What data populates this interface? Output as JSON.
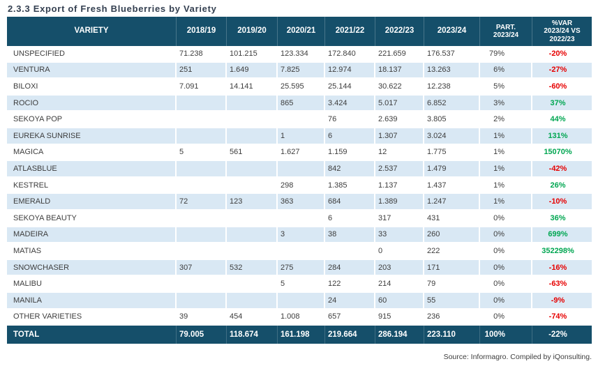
{
  "title": "2.3.3 Export of Fresh Blueberries by Variety",
  "source_note": "Source: Informagro. Compiled by iQonsulting.",
  "colors": {
    "header_bg": "#154f6a",
    "alt_row_bg": "#d9e8f4",
    "positive": "#00a651",
    "negative": "#e60000",
    "title_text": "#333f50",
    "body_text": "#3d3d3d"
  },
  "table": {
    "columns": [
      {
        "id": "variety",
        "label": "VARIETY"
      },
      {
        "id": "2018-19",
        "label": "2018/19"
      },
      {
        "id": "2019-20",
        "label": "2019/20"
      },
      {
        "id": "2020-21",
        "label": "2020/21"
      },
      {
        "id": "2021-22",
        "label": "2021/22"
      },
      {
        "id": "2022-23",
        "label": "2022/23"
      },
      {
        "id": "2023-24",
        "label": "2023/24"
      },
      {
        "id": "part-2023-24",
        "label": "PART.\n2023/24"
      },
      {
        "id": "var-2023-24-vs-2022-23",
        "label": "%VAR\n2023/24 VS\n2022/23"
      }
    ],
    "rows": [
      {
        "variety": "UNSPECIFIED",
        "values": [
          "71.238",
          "101.215",
          "123.334",
          "172.840",
          "221.659",
          "176.537"
        ],
        "part": "79%",
        "variance": "-20%"
      },
      {
        "variety": "VENTURA",
        "values": [
          "251",
          "1.649",
          "7.825",
          "12.974",
          "18.137",
          "13.263"
        ],
        "part": "6%",
        "variance": "-27%"
      },
      {
        "variety": "BILOXI",
        "values": [
          "7.091",
          "14.141",
          "25.595",
          "25.144",
          "30.622",
          "12.238"
        ],
        "part": "5%",
        "variance": "-60%"
      },
      {
        "variety": "ROCIO",
        "values": [
          "",
          "",
          "865",
          "3.424",
          "5.017",
          "6.852"
        ],
        "part": "3%",
        "variance": "37%"
      },
      {
        "variety": "SEKOYA POP",
        "values": [
          "",
          "",
          "",
          "76",
          "2.639",
          "3.805"
        ],
        "part": "2%",
        "variance": "44%"
      },
      {
        "variety": "EUREKA SUNRISE",
        "values": [
          "",
          "",
          "1",
          "6",
          "1.307",
          "3.024"
        ],
        "part": "1%",
        "variance": "131%"
      },
      {
        "variety": "MAGICA",
        "values": [
          "5",
          "561",
          "1.627",
          "1.159",
          "12",
          "1.775"
        ],
        "part": "1%",
        "variance": "15070%"
      },
      {
        "variety": "ATLASBLUE",
        "values": [
          "",
          "",
          "",
          "842",
          "2.537",
          "1.479"
        ],
        "part": "1%",
        "variance": "-42%"
      },
      {
        "variety": "KESTREL",
        "values": [
          "",
          "",
          "298",
          "1.385",
          "1.137",
          "1.437"
        ],
        "part": "1%",
        "variance": "26%"
      },
      {
        "variety": "EMERALD",
        "values": [
          "72",
          "123",
          "363",
          "684",
          "1.389",
          "1.247"
        ],
        "part": "1%",
        "variance": "-10%"
      },
      {
        "variety": "SEKOYA BEAUTY",
        "values": [
          "",
          "",
          "",
          "6",
          "317",
          "431"
        ],
        "part": "0%",
        "variance": "36%"
      },
      {
        "variety": "MADEIRA",
        "values": [
          "",
          "",
          "3",
          "38",
          "33",
          "260"
        ],
        "part": "0%",
        "variance": "699%"
      },
      {
        "variety": "MATIAS",
        "values": [
          "",
          "",
          "",
          "",
          "0",
          "222"
        ],
        "part": "0%",
        "variance": "352298%"
      },
      {
        "variety": "SNOWCHASER",
        "values": [
          "307",
          "532",
          "275",
          "284",
          "203",
          "171"
        ],
        "part": "0%",
        "variance": "-16%"
      },
      {
        "variety": "MALIBU",
        "values": [
          "",
          "",
          "5",
          "122",
          "214",
          "79"
        ],
        "part": "0%",
        "variance": "-63%"
      },
      {
        "variety": "MANILA",
        "values": [
          "",
          "",
          "",
          "24",
          "60",
          "55"
        ],
        "part": "0%",
        "variance": "-9%"
      },
      {
        "variety": "OTHER VARIETIES",
        "values": [
          "39",
          "454",
          "1.008",
          "657",
          "915",
          "236"
        ],
        "part": "0%",
        "variance": "-74%"
      }
    ],
    "total": {
      "variety": "TOTAL",
      "values": [
        "79.005",
        "118.674",
        "161.198",
        "219.664",
        "286.194",
        "223.110"
      ],
      "part": "100%",
      "variance": "-22%"
    }
  }
}
